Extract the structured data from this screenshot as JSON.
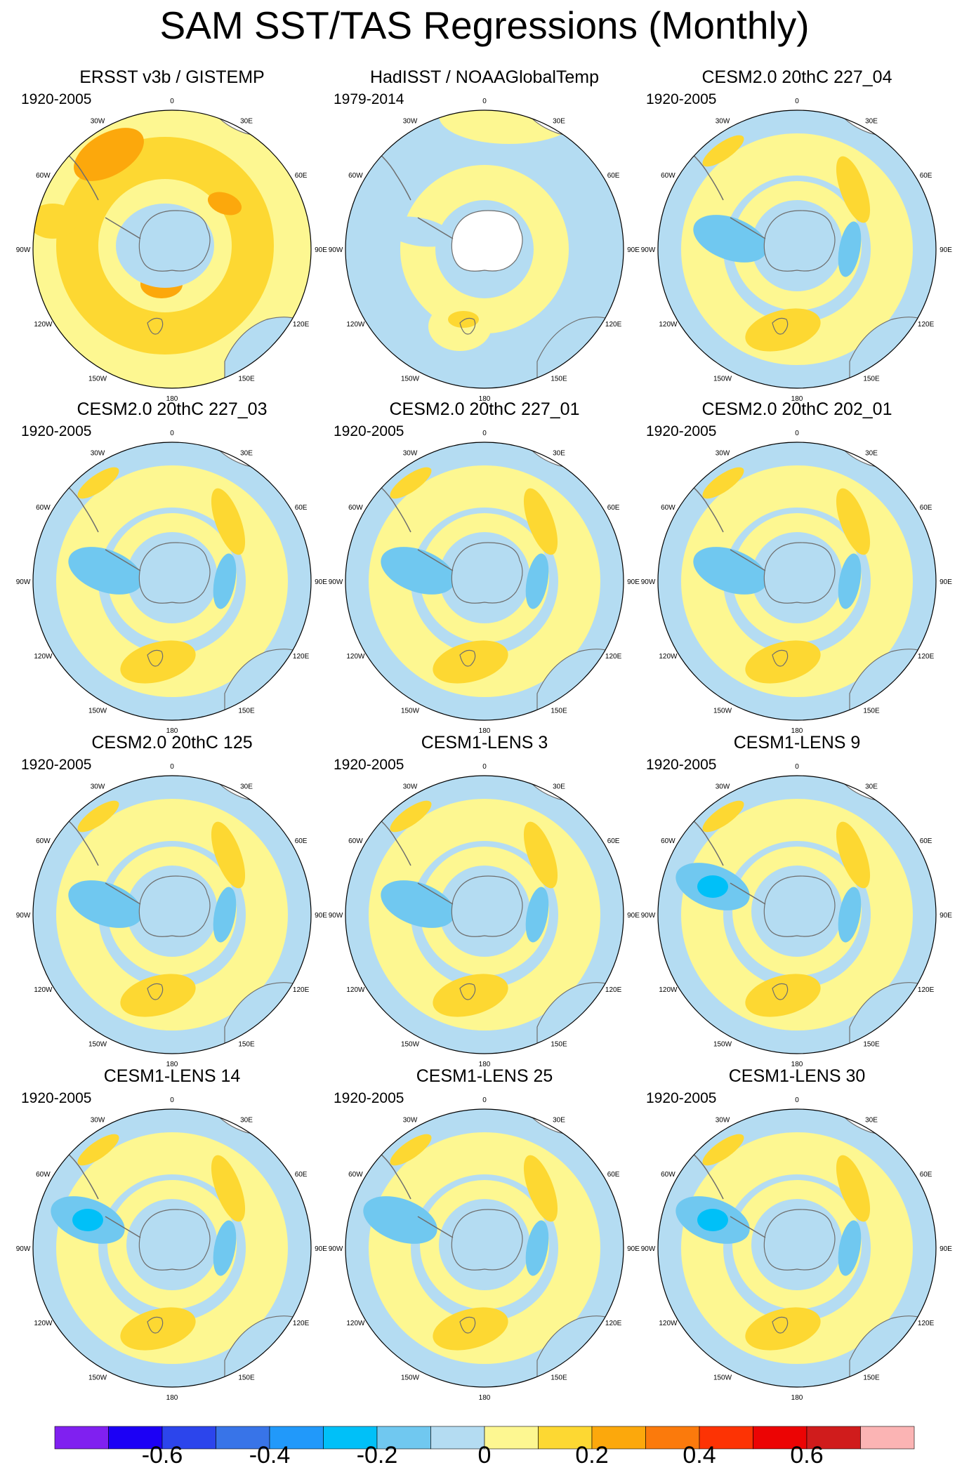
{
  "title": "SAM SST/TAS Regressions (Monthly)",
  "panels": [
    {
      "title": "ERSST v3b / GISTEMP",
      "period": "1920-2005"
    },
    {
      "title": "HadISST / NOAAGlobalTemp",
      "period": "1979-2014"
    },
    {
      "title": "CESM2.0 20thC 227_04",
      "period": "1920-2005"
    },
    {
      "title": "CESM2.0 20thC 227_03",
      "period": "1920-2005"
    },
    {
      "title": "CESM2.0 20thC 227_01",
      "period": "1920-2005"
    },
    {
      "title": "CESM2.0 20thC 202_01",
      "period": "1920-2005"
    },
    {
      "title": "CESM2.0 20thC 125",
      "period": "1920-2005"
    },
    {
      "title": "CESM1-LENS 3",
      "period": "1920-2005"
    },
    {
      "title": "CESM1-LENS 9",
      "period": "1920-2005"
    },
    {
      "title": "CESM1-LENS 14",
      "period": "1920-2005"
    },
    {
      "title": "CESM1-LENS 25",
      "period": "1920-2005"
    },
    {
      "title": "CESM1-LENS 30",
      "period": "1920-2005"
    }
  ],
  "lon_labels": [
    "0",
    "30E",
    "60E",
    "90E",
    "120E",
    "150E",
    "180",
    "150W",
    "120W",
    "90W",
    "60W",
    "30W"
  ],
  "colorbar": {
    "colors": [
      "#8020f0",
      "#1c00f5",
      "#2c45ec",
      "#3874e8",
      "#2199fa",
      "#00c0f8",
      "#70c8f0",
      "#b4dcf2",
      "#fdf791",
      "#fdd832",
      "#fca80c",
      "#fb7a0c",
      "#fd3304",
      "#ec0404",
      "#d01c1c",
      "#fbb4b4"
    ],
    "tick_labels": [
      "-0.6",
      "-0.4",
      "-0.2",
      "0",
      "0.2",
      "0.4",
      "0.6"
    ]
  },
  "map_colors": {
    "ocean_light_blue": "#b4dcf2",
    "mid_blue": "#70c8f0",
    "strong_blue": "#00c0f8",
    "yellow": "#fdf791",
    "gold": "#fdd832",
    "orange": "#fca80c",
    "land": "#ffffff",
    "coast": "#6e6e6e"
  }
}
